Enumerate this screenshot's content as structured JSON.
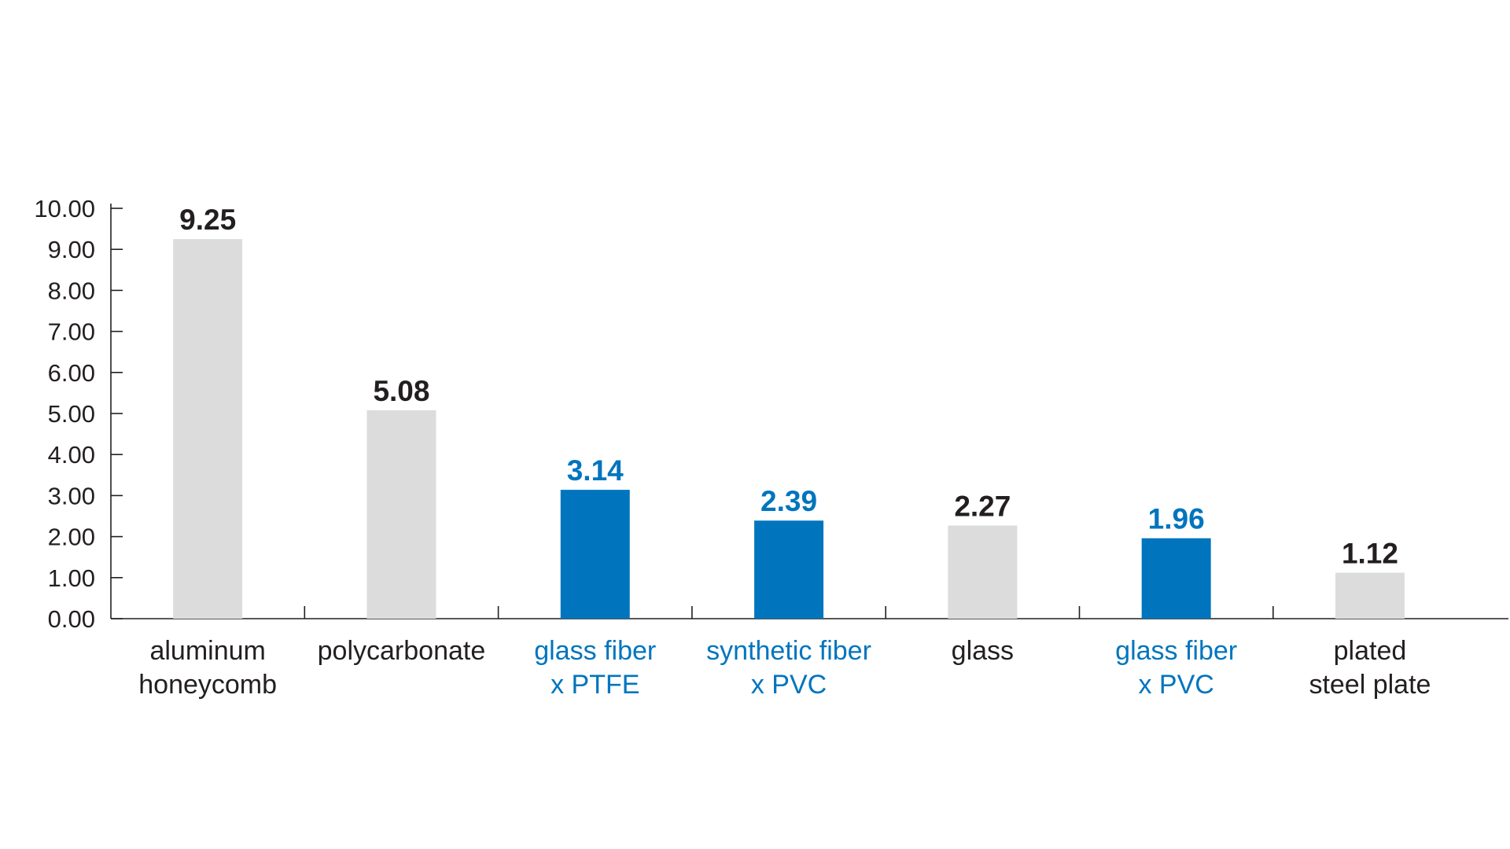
{
  "chart_data": {
    "type": "bar",
    "categories": [
      [
        "aluminum",
        "honeycomb"
      ],
      [
        "polycarbonate"
      ],
      [
        "glass fiber",
        "x PTFE"
      ],
      [
        "synthetic fiber",
        "x PVC"
      ],
      [
        "glass"
      ],
      [
        "glass fiber",
        "x PVC"
      ],
      [
        "plated",
        "steel plate"
      ]
    ],
    "values": [
      9.25,
      5.08,
      3.14,
      2.39,
      2.27,
      1.96,
      1.12
    ],
    "value_labels": [
      "9.25",
      "5.08",
      "3.14",
      "2.39",
      "2.27",
      "1.96",
      "1.12"
    ],
    "highlighted": [
      false,
      false,
      true,
      true,
      false,
      true,
      false
    ],
    "ylim": [
      0,
      10
    ],
    "yticks": [
      "0.00",
      "1.00",
      "2.00",
      "3.00",
      "4.00",
      "5.00",
      "6.00",
      "7.00",
      "8.00",
      "9.00",
      "10.00"
    ],
    "title": "",
    "xlabel": "",
    "ylabel": "",
    "grid": false,
    "colors": {
      "bar_default": "#dcdcdc",
      "bar_highlight": "#0075be",
      "text_default": "#231f20",
      "text_highlight": "#0075be",
      "axis": "#231f20"
    }
  }
}
